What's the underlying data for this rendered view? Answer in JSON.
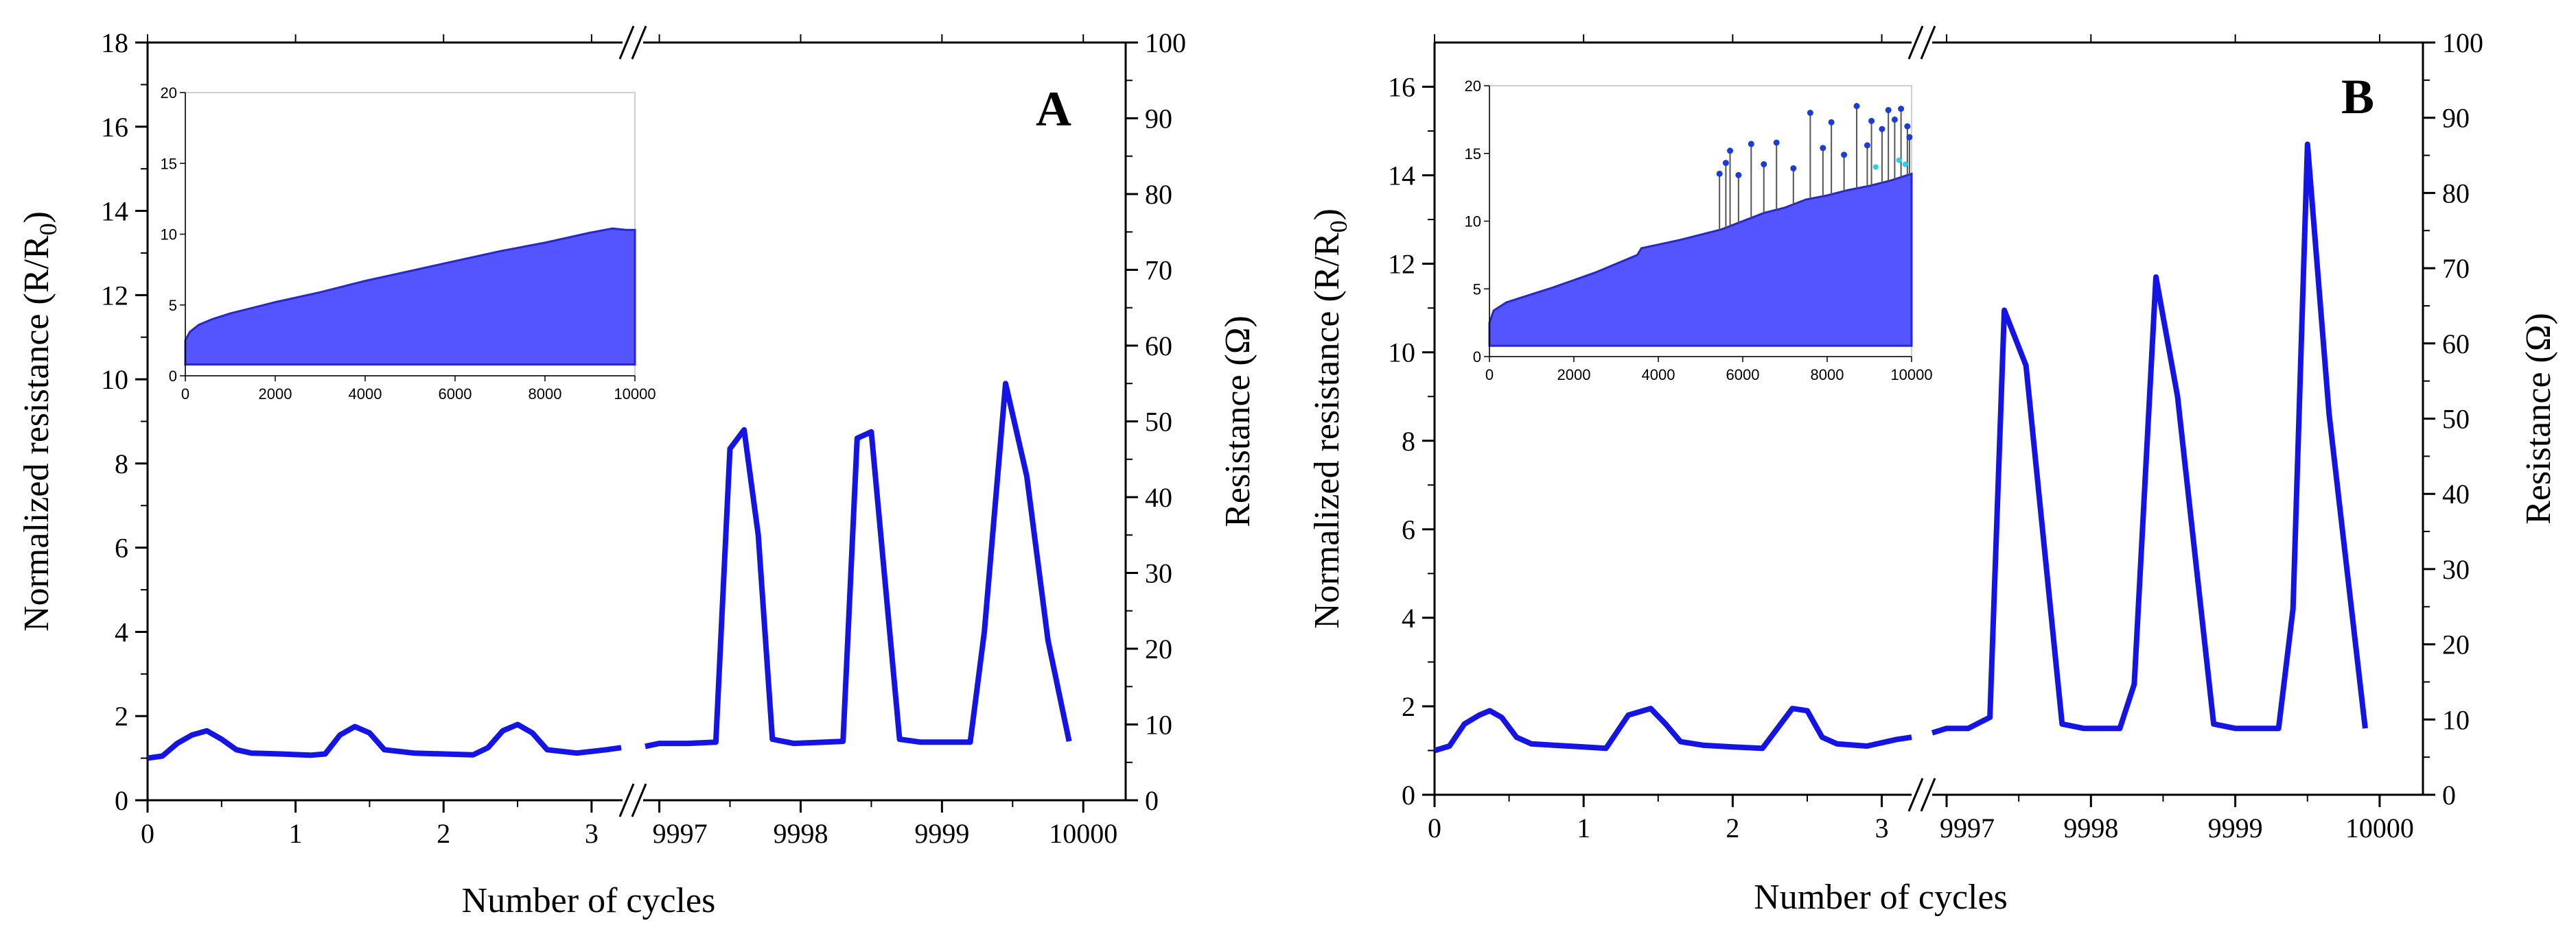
{
  "chart_data": [
    {
      "type": "line",
      "panel": "A",
      "xlabel": "Number of cycles",
      "ylabel": "Normalized resistance (R/R",
      "ylabel_sub": "0",
      "ylabel_end": ")",
      "y2label": "Resistance (Ω)",
      "x_segments": [
        {
          "range": [
            0,
            3.2
          ],
          "ticks": [
            0,
            1,
            2,
            3
          ],
          "tick_labels": [
            "0",
            "1",
            "2",
            "3"
          ]
        },
        {
          "range": [
            9996.9,
            10000.3
          ],
          "ticks": [
            9997,
            9998,
            9999,
            10000
          ],
          "tick_labels": [
            "9997",
            "9998",
            "9999",
            "10000"
          ]
        }
      ],
      "ylim": [
        0,
        18
      ],
      "yticks": [
        0,
        2,
        4,
        6,
        8,
        10,
        12,
        14,
        16,
        18
      ],
      "ytick_labels": [
        "0",
        "2",
        "4",
        "6",
        "8",
        "10",
        "12",
        "14",
        "16",
        "18"
      ],
      "y2lim": [
        0,
        100
      ],
      "y2ticks": [
        0,
        10,
        20,
        30,
        40,
        50,
        60,
        70,
        80,
        90,
        100
      ],
      "y2tick_labels": [
        "0",
        "10",
        "20",
        "30",
        "40",
        "50",
        "60",
        "70",
        "80",
        "90",
        "100"
      ],
      "axis_break": "//",
      "series": [
        {
          "color": "#1414e6",
          "segment1": [
            [
              0,
              1.0
            ],
            [
              0.1,
              1.05
            ],
            [
              0.2,
              1.35
            ],
            [
              0.3,
              1.55
            ],
            [
              0.4,
              1.65
            ],
            [
              0.5,
              1.45
            ],
            [
              0.6,
              1.2
            ],
            [
              0.7,
              1.12
            ],
            [
              0.9,
              1.1
            ],
            [
              1.1,
              1.07
            ],
            [
              1.2,
              1.1
            ],
            [
              1.3,
              1.55
            ],
            [
              1.4,
              1.75
            ],
            [
              1.5,
              1.6
            ],
            [
              1.6,
              1.2
            ],
            [
              1.8,
              1.12
            ],
            [
              2.0,
              1.1
            ],
            [
              2.2,
              1.08
            ],
            [
              2.3,
              1.25
            ],
            [
              2.4,
              1.65
            ],
            [
              2.5,
              1.8
            ],
            [
              2.6,
              1.6
            ],
            [
              2.7,
              1.2
            ],
            [
              2.9,
              1.12
            ],
            [
              3.1,
              1.2
            ],
            [
              3.2,
              1.25
            ]
          ],
          "segment2": [
            [
              9996.9,
              1.28
            ],
            [
              9997.0,
              1.35
            ],
            [
              9997.2,
              1.35
            ],
            [
              9997.4,
              1.38
            ],
            [
              9997.5,
              8.35
            ],
            [
              9997.6,
              8.8
            ],
            [
              9997.7,
              6.3
            ],
            [
              9997.8,
              1.45
            ],
            [
              9997.95,
              1.35
            ],
            [
              9998.3,
              1.4
            ],
            [
              9998.4,
              8.6
            ],
            [
              9998.5,
              8.75
            ],
            [
              9998.7,
              1.45
            ],
            [
              9998.85,
              1.38
            ],
            [
              9999.2,
              1.38
            ],
            [
              9999.3,
              4.0
            ],
            [
              9999.45,
              9.9
            ],
            [
              9999.6,
              7.7
            ],
            [
              9999.75,
              3.8
            ],
            [
              9999.9,
              1.4
            ]
          ]
        }
      ],
      "inset": {
        "type": "area",
        "xlim": [
          0,
          10000
        ],
        "ylim": [
          0,
          20
        ],
        "xticks": [
          0,
          2000,
          4000,
          6000,
          8000,
          10000
        ],
        "xtick_labels": [
          "0",
          "2000",
          "4000",
          "6000",
          "8000",
          "10000"
        ],
        "yticks": [
          0,
          5,
          10,
          15,
          20
        ],
        "ytick_labels": [
          "0",
          "5",
          "10",
          "15",
          "20"
        ],
        "fill_color": "#5555ff",
        "baseline": 0.8,
        "upper_envelope": [
          [
            0,
            2.5
          ],
          [
            100,
            3.1
          ],
          [
            300,
            3.6
          ],
          [
            600,
            4.0
          ],
          [
            1000,
            4.4
          ],
          [
            2000,
            5.2
          ],
          [
            3000,
            5.9
          ],
          [
            4000,
            6.7
          ],
          [
            5000,
            7.4
          ],
          [
            6000,
            8.1
          ],
          [
            7000,
            8.8
          ],
          [
            8000,
            9.4
          ],
          [
            9000,
            10.1
          ],
          [
            9500,
            10.4
          ],
          [
            9800,
            10.3
          ],
          [
            10000,
            10.3
          ]
        ]
      }
    },
    {
      "type": "line",
      "panel": "B",
      "xlabel": "Number of cycles",
      "ylabel": "Normalized resistance (R/R",
      "ylabel_sub": "0",
      "ylabel_end": ")",
      "y2label": "Resistance (Ω)",
      "x_segments": [
        {
          "range": [
            0,
            3.2
          ],
          "ticks": [
            0,
            1,
            2,
            3
          ],
          "tick_labels": [
            "0",
            "1",
            "2",
            "3"
          ]
        },
        {
          "range": [
            9996.9,
            10000.3
          ],
          "ticks": [
            9997,
            9998,
            9999,
            10000
          ],
          "tick_labels": [
            "9997",
            "9998",
            "9999",
            "10000"
          ]
        }
      ],
      "ylim": [
        0,
        17
      ],
      "yticks": [
        0,
        2,
        4,
        6,
        8,
        10,
        12,
        14,
        16
      ],
      "ytick_labels": [
        "0",
        "2",
        "4",
        "6",
        "8",
        "10",
        "12",
        "14",
        "16"
      ],
      "y2lim": [
        0,
        100
      ],
      "y2ticks": [
        0,
        10,
        20,
        30,
        40,
        50,
        60,
        70,
        80,
        90,
        100
      ],
      "y2tick_labels": [
        "0",
        "10",
        "20",
        "30",
        "40",
        "50",
        "60",
        "70",
        "80",
        "90",
        "100"
      ],
      "axis_break": "//",
      "series": [
        {
          "color": "#1414e6",
          "segment1": [
            [
              0,
              1.0
            ],
            [
              0.1,
              1.1
            ],
            [
              0.2,
              1.6
            ],
            [
              0.3,
              1.8
            ],
            [
              0.37,
              1.9
            ],
            [
              0.45,
              1.75
            ],
            [
              0.55,
              1.3
            ],
            [
              0.65,
              1.15
            ],
            [
              0.8,
              1.12
            ],
            [
              1.0,
              1.08
            ],
            [
              1.15,
              1.05
            ],
            [
              1.3,
              1.8
            ],
            [
              1.45,
              1.95
            ],
            [
              1.55,
              1.6
            ],
            [
              1.65,
              1.2
            ],
            [
              1.8,
              1.12
            ],
            [
              2.0,
              1.08
            ],
            [
              2.2,
              1.05
            ],
            [
              2.3,
              1.5
            ],
            [
              2.4,
              1.95
            ],
            [
              2.5,
              1.9
            ],
            [
              2.6,
              1.3
            ],
            [
              2.7,
              1.15
            ],
            [
              2.9,
              1.1
            ],
            [
              3.1,
              1.25
            ],
            [
              3.2,
              1.3
            ]
          ],
          "segment2": [
            [
              9996.9,
              1.4
            ],
            [
              9997.0,
              1.5
            ],
            [
              9997.15,
              1.5
            ],
            [
              9997.3,
              1.75
            ],
            [
              9997.4,
              10.95
            ],
            [
              9997.55,
              9.7
            ],
            [
              9997.8,
              1.6
            ],
            [
              9997.95,
              1.5
            ],
            [
              9998.2,
              1.5
            ],
            [
              9998.3,
              2.5
            ],
            [
              9998.45,
              11.7
            ],
            [
              9998.6,
              9.0
            ],
            [
              9998.85,
              1.6
            ],
            [
              9999.0,
              1.5
            ],
            [
              9999.3,
              1.5
            ],
            [
              9999.4,
              4.2
            ],
            [
              9999.5,
              14.7
            ],
            [
              9999.65,
              8.6
            ],
            [
              9999.9,
              1.5
            ]
          ]
        }
      ],
      "inset": {
        "type": "area",
        "xlim": [
          0,
          10000
        ],
        "ylim": [
          0,
          20
        ],
        "xticks": [
          0,
          2000,
          4000,
          6000,
          8000,
          10000
        ],
        "xtick_labels": [
          "0",
          "2000",
          "4000",
          "6000",
          "8000",
          "10000"
        ],
        "yticks": [
          0,
          5,
          10,
          15,
          20
        ],
        "ytick_labels": [
          "0",
          "5",
          "10",
          "15",
          "20"
        ],
        "fill_color": "#5555ff",
        "baseline": 0.8,
        "upper_envelope": [
          [
            0,
            2.5
          ],
          [
            100,
            3.4
          ],
          [
            400,
            4.0
          ],
          [
            800,
            4.4
          ],
          [
            1500,
            5.1
          ],
          [
            2500,
            6.2
          ],
          [
            3500,
            7.5
          ],
          [
            3600,
            8.0
          ],
          [
            4500,
            8.6
          ],
          [
            5000,
            9.0
          ],
          [
            5500,
            9.4
          ],
          [
            6000,
            10.0
          ],
          [
            6500,
            10.6
          ],
          [
            7000,
            11.0
          ],
          [
            7500,
            11.6
          ],
          [
            8000,
            11.9
          ],
          [
            8500,
            12.3
          ],
          [
            9000,
            12.6
          ],
          [
            9500,
            13.0
          ],
          [
            10000,
            13.5
          ]
        ],
        "spikes": [
          [
            5450,
            13.5
          ],
          [
            5600,
            14.3
          ],
          [
            5700,
            15.2
          ],
          [
            5900,
            13.4
          ],
          [
            6200,
            15.7
          ],
          [
            6500,
            14.2
          ],
          [
            6800,
            15.8
          ],
          [
            7200,
            13.9
          ],
          [
            7600,
            18.0
          ],
          [
            7900,
            15.4
          ],
          [
            8100,
            17.3
          ],
          [
            8400,
            14.9
          ],
          [
            8700,
            18.5
          ],
          [
            8950,
            15.6
          ],
          [
            9050,
            17.4
          ],
          [
            9300,
            16.8
          ],
          [
            9450,
            18.2
          ],
          [
            9600,
            17.5
          ],
          [
            9750,
            18.3
          ],
          [
            9900,
            17.0
          ],
          [
            9950,
            16.2
          ]
        ]
      }
    }
  ]
}
